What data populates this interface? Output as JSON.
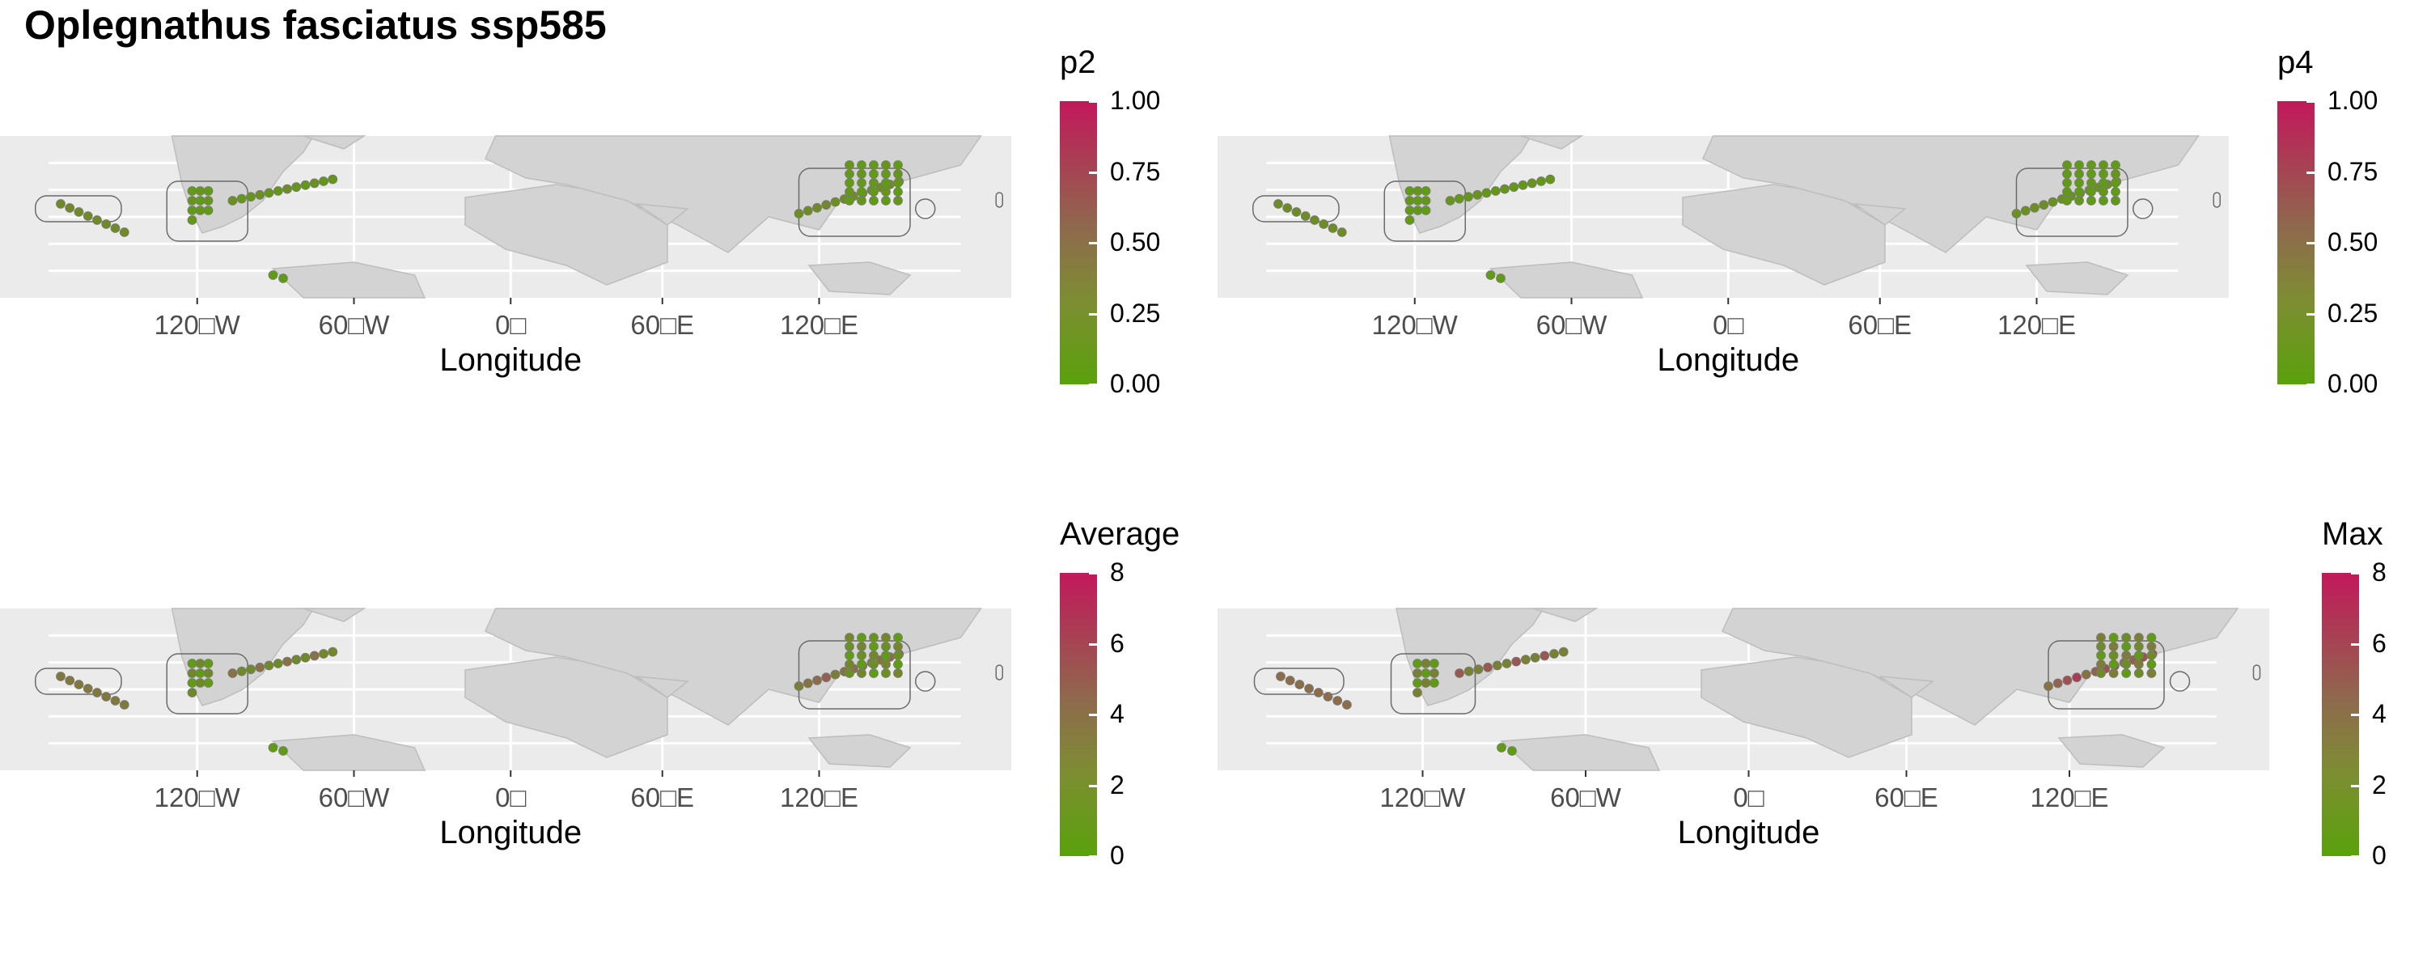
{
  "title": "Oplegnathus fasciatus ssp585",
  "colors": {
    "panel_bg": "#ebebeb",
    "land": "#d3d3d3",
    "grid": "#ffffff",
    "low": "#5aa10c",
    "mid": "#8e6a4d",
    "high": "#c2185b"
  },
  "panels": [
    {
      "id": "p2",
      "legend_title": "p2",
      "legend_labels": [
        "1.00",
        "0.75",
        "0.50",
        "0.25",
        "0.00"
      ],
      "x_axis_label": "Longitude",
      "x_ticks": [
        "120□W",
        "60□W",
        "0□",
        "60□E",
        "120□E"
      ],
      "values_range": [
        0,
        1
      ],
      "hotspot_level": 0.15
    },
    {
      "id": "p4",
      "legend_title": "p4",
      "legend_labels": [
        "1.00",
        "0.75",
        "0.50",
        "0.25",
        "0.00"
      ],
      "x_axis_label": "Longitude",
      "x_ticks": [
        "120□W",
        "60□W",
        "0□",
        "60□E",
        "120□E"
      ],
      "values_range": [
        0,
        1
      ],
      "hotspot_level": 0.1
    },
    {
      "id": "average",
      "legend_title": "Average",
      "legend_labels": [
        "8",
        "6",
        "4",
        "2",
        "0"
      ],
      "x_axis_label": "Longitude",
      "x_ticks": [
        "120□W",
        "60□W",
        "0□",
        "60□E",
        "120□E"
      ],
      "values_range": [
        0,
        8
      ],
      "hotspot_level": 0.55
    },
    {
      "id": "max",
      "legend_title": "Max",
      "legend_labels": [
        "8",
        "6",
        "4",
        "2",
        "0"
      ],
      "x_axis_label": "Longitude",
      "x_ticks": [
        "120□W",
        "60□W",
        "0□",
        "60□E",
        "120□E"
      ],
      "values_range": [
        0,
        8
      ],
      "hotspot_level": 0.8
    }
  ]
}
